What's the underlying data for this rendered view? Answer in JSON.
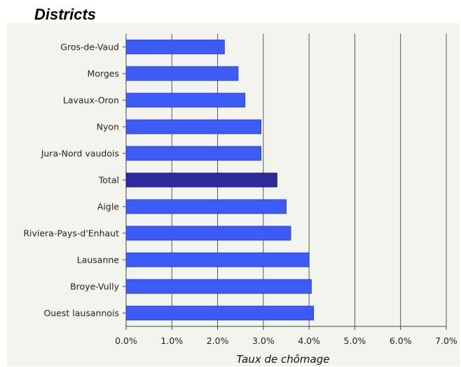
{
  "chart_data": {
    "type": "bar",
    "orientation": "horizontal",
    "title": "Districts",
    "xlabel": "Taux de chômage",
    "ylabel": "",
    "xlim": [
      0,
      7
    ],
    "x_ticks": [
      "0.0%",
      "1.0%",
      "2.0%",
      "3.0%",
      "4.0%",
      "5.0%",
      "6.0%",
      "7.0%"
    ],
    "grid": "vertical",
    "categories": [
      "Gros-de-Vaud",
      "Morges",
      "Lavaux-Oron",
      "Nyon",
      "Jura-Nord vaudois",
      "Total",
      "Aigle",
      "Riviera-Pays-d'Enhaut",
      "Lausanne",
      "Broye-Vully",
      "Ouest lausannois"
    ],
    "values": [
      2.15,
      2.45,
      2.6,
      2.95,
      2.95,
      3.3,
      3.5,
      3.6,
      4.0,
      4.05,
      4.1
    ],
    "highlight_category": "Total",
    "colors": {
      "bar": "#3d5cf5",
      "bar_highlight": "#2e2a9a",
      "plot_bg": "#f4f4ef",
      "grid": "#555555"
    }
  }
}
